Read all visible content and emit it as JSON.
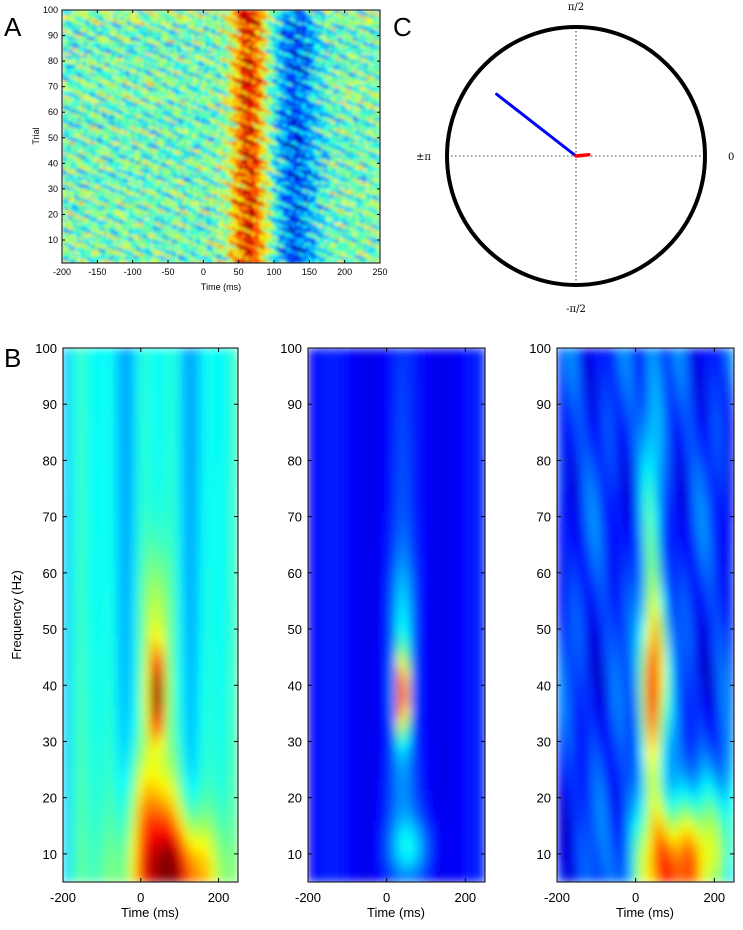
{
  "panels": {
    "a": "A",
    "b": "B",
    "c": "C"
  },
  "colors": {
    "jet_low": "#00008f",
    "jet_high": "#800000",
    "polar_circle": "#000000",
    "mean_vector": "#0000ff",
    "small_vector": "#ff0000"
  },
  "chart_data": [
    {
      "id": "A",
      "type": "heatmap",
      "xlabel": "Time (ms)",
      "ylabel": "Trial",
      "xlim": [
        -200,
        250
      ],
      "ylim": [
        1,
        100
      ],
      "xticks": [
        -200,
        -150,
        -100,
        -50,
        0,
        50,
        100,
        150,
        200,
        250
      ],
      "xtick_labels": [
        "-200",
        "-150",
        "-100",
        "-50",
        "0",
        "50",
        "100",
        "150",
        "200",
        "250"
      ],
      "yticks": [
        10,
        20,
        30,
        40,
        50,
        60,
        70,
        80,
        90,
        100
      ],
      "ytick_labels": [
        "10",
        "20",
        "30",
        "40",
        "50",
        "60",
        "70",
        "80",
        "90",
        "100"
      ],
      "colormap": "jet",
      "features": [
        {
          "description": "high-value band across all trials",
          "time_start_ms": 40,
          "time_end_ms": 90
        },
        {
          "description": "low-value band across all trials",
          "time_start_ms": 100,
          "time_end_ms": 160
        }
      ]
    },
    {
      "id": "C",
      "type": "polar",
      "angle_labels": {
        "top": "π/2",
        "right": "0",
        "bottom": "-π/2",
        "left": "±π"
      },
      "vectors": [
        {
          "color": "blue",
          "angle_rad": 2.48,
          "length": 0.78
        },
        {
          "color": "red",
          "angle_rad": 0.1,
          "length": 0.1
        }
      ]
    },
    {
      "id": "B1",
      "type": "heatmap",
      "xlabel": "Time (ms)",
      "ylabel": "Frequency (Hz)",
      "xlim": [
        -200,
        250
      ],
      "ylim": [
        5,
        100
      ],
      "xticks": [
        -200,
        0,
        200
      ],
      "xtick_labels": [
        "-200",
        "0",
        "200"
      ],
      "yticks": [
        10,
        20,
        30,
        40,
        50,
        60,
        70,
        80,
        90,
        100
      ],
      "ytick_labels": [
        "10",
        "20",
        "30",
        "40",
        "50",
        "60",
        "70",
        "80",
        "90",
        "100"
      ],
      "colormap": "jet",
      "features": [
        {
          "description": "peak",
          "time_ms": 40,
          "frequency_hz": 38
        },
        {
          "description": "low-frequency high region",
          "time_ms": 80,
          "frequency_hz": 6
        }
      ]
    },
    {
      "id": "B2",
      "type": "heatmap",
      "xlabel": "Time (ms)",
      "xlim": [
        -200,
        250
      ],
      "ylim": [
        5,
        100
      ],
      "xticks": [
        -200,
        0,
        200
      ],
      "xtick_labels": [
        "-200",
        "0",
        "200"
      ],
      "yticks": [
        10,
        20,
        30,
        40,
        50,
        60,
        70,
        80,
        90,
        100
      ],
      "ytick_labels": [
        "10",
        "20",
        "30",
        "40",
        "50",
        "60",
        "70",
        "80",
        "90",
        "100"
      ],
      "colormap": "jet",
      "features": [
        {
          "description": "peak",
          "time_ms": 40,
          "frequency_hz": 38
        },
        {
          "description": "weak low-frequency region",
          "time_ms": 60,
          "frequency_hz": 11
        }
      ]
    },
    {
      "id": "B3",
      "type": "heatmap",
      "xlabel": "Time (ms)",
      "xlim": [
        -200,
        250
      ],
      "ylim": [
        5,
        100
      ],
      "xticks": [
        -200,
        0,
        200
      ],
      "xtick_labels": [
        "-200",
        "0",
        "200"
      ],
      "yticks": [
        10,
        20,
        30,
        40,
        50,
        60,
        70,
        80,
        90,
        100
      ],
      "ytick_labels": [
        "10",
        "20",
        "30",
        "40",
        "50",
        "60",
        "70",
        "80",
        "90",
        "100"
      ],
      "colormap": "jet",
      "features": [
        {
          "description": "broad peak",
          "time_ms": 50,
          "frequency_hz": 40
        },
        {
          "description": "low-frequency high region",
          "time_ms": 100,
          "frequency_hz": 8
        }
      ]
    }
  ]
}
